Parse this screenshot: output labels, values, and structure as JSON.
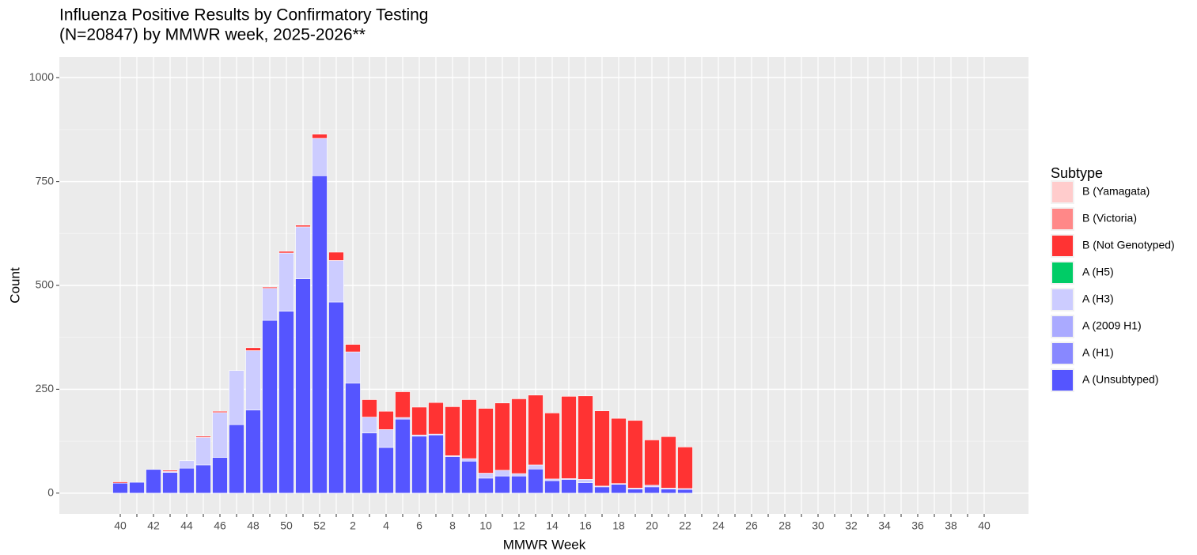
{
  "chart_data": {
    "type": "stacked_bar",
    "title": [
      "Influenza Positive Results by Confirmatory Testing",
      "(N=20847) by MMWR week, 2025-2026**"
    ],
    "x_label": "MMWR Week",
    "y_label": "Count",
    "legend_title": "Subtype",
    "categories": [
      "40",
      null,
      "42",
      null,
      "44",
      null,
      "46",
      null,
      "48",
      null,
      "50",
      null,
      "52",
      null,
      "2",
      null,
      "4",
      null,
      "6",
      null,
      "8",
      null,
      "10",
      null,
      "12",
      null,
      "14",
      null,
      "16",
      null,
      "18",
      null,
      "20",
      null,
      "22",
      null,
      "24",
      null,
      "26",
      null,
      "28",
      null,
      "30",
      null,
      "32",
      null,
      "34",
      null,
      "36",
      null,
      "38",
      null,
      "40"
    ],
    "series": [
      {
        "name": "A (Unsubtyped)",
        "color": "#5555ff",
        "values": [
          24,
          26,
          57,
          50,
          60,
          68,
          86,
          165,
          200,
          416,
          438,
          516,
          764,
          460,
          265,
          145,
          110,
          178,
          137,
          140,
          88,
          77,
          36,
          41,
          41,
          58,
          30,
          33,
          25,
          15,
          21,
          10,
          15,
          10,
          9,
          null,
          null,
          null,
          null,
          null,
          null,
          null,
          null,
          null,
          null,
          null,
          null,
          null,
          null,
          null,
          null,
          null,
          null
        ]
      },
      {
        "name": "A (H1)",
        "color": "#8888ff",
        "values": [
          0,
          0,
          0,
          0,
          0,
          0,
          0,
          0,
          0,
          0,
          0,
          0,
          0,
          0,
          0,
          0,
          0,
          0,
          0,
          0,
          0,
          0,
          0,
          0,
          0,
          0,
          0,
          0,
          0,
          0,
          0,
          0,
          0,
          0,
          0,
          null,
          null,
          null,
          null,
          null,
          null,
          null,
          null,
          null,
          null,
          null,
          null,
          null,
          null,
          null,
          null,
          null,
          null
        ]
      },
      {
        "name": "A (2009 H1)",
        "color": "#aaaaff",
        "values": [
          0,
          0,
          0,
          0,
          0,
          0,
          0,
          0,
          0,
          0,
          0,
          0,
          0,
          0,
          0,
          0,
          0,
          0,
          0,
          0,
          0,
          0,
          0,
          0,
          0,
          0,
          0,
          0,
          0,
          0,
          0,
          0,
          0,
          0,
          0,
          null,
          null,
          null,
          null,
          null,
          null,
          null,
          null,
          null,
          null,
          null,
          null,
          null,
          null,
          null,
          null,
          null,
          null
        ]
      },
      {
        "name": "A (H3)",
        "color": "#ccccff",
        "values": [
          0,
          0,
          0,
          2,
          18,
          66,
          108,
          130,
          143,
          77,
          140,
          125,
          90,
          100,
          75,
          38,
          43,
          4,
          3,
          2,
          2,
          6,
          12,
          14,
          6,
          10,
          4,
          2,
          8,
          2,
          2,
          2,
          4,
          2,
          2,
          null,
          null,
          null,
          null,
          null,
          null,
          null,
          null,
          null,
          null,
          null,
          null,
          null,
          null,
          null,
          null,
          null,
          null
        ]
      },
      {
        "name": "A (H5)",
        "color": "#00cc66",
        "values": [
          0,
          0,
          0,
          0,
          0,
          0,
          0,
          0,
          0,
          0,
          0,
          0,
          0,
          0,
          0,
          0,
          0,
          0,
          0,
          0,
          0,
          0,
          0,
          0,
          0,
          0,
          0,
          0,
          0,
          0,
          0,
          0,
          0,
          0,
          0,
          null,
          null,
          null,
          null,
          null,
          null,
          null,
          null,
          null,
          null,
          null,
          null,
          null,
          null,
          null,
          null,
          null,
          null
        ]
      },
      {
        "name": "B (Not Genotyped)",
        "color": "#ff3333",
        "values": [
          3,
          0,
          0,
          3,
          0,
          3,
          3,
          0,
          7,
          3,
          4,
          4,
          10,
          20,
          18,
          42,
          44,
          62,
          67,
          76,
          118,
          142,
          156,
          162,
          180,
          168,
          159,
          198,
          201,
          181,
          157,
          163,
          109,
          124,
          100,
          null,
          null,
          null,
          null,
          null,
          null,
          null,
          null,
          null,
          null,
          null,
          null,
          null,
          null,
          null,
          null,
          null,
          null
        ]
      },
      {
        "name": "B (Victoria)",
        "color": "#ff8888",
        "values": [
          0,
          0,
          0,
          0,
          0,
          0,
          0,
          0,
          0,
          0,
          0,
          0,
          0,
          0,
          0,
          0,
          0,
          0,
          0,
          0,
          0,
          0,
          0,
          0,
          0,
          0,
          0,
          0,
          0,
          0,
          0,
          0,
          0,
          0,
          0,
          null,
          null,
          null,
          null,
          null,
          null,
          null,
          null,
          null,
          null,
          null,
          null,
          null,
          null,
          null,
          null,
          null,
          null
        ]
      },
      {
        "name": "B (Yamagata)",
        "color": "#ffcccc",
        "values": [
          0,
          0,
          0,
          0,
          0,
          0,
          0,
          0,
          0,
          0,
          0,
          0,
          0,
          0,
          0,
          0,
          0,
          0,
          0,
          0,
          0,
          0,
          0,
          0,
          0,
          0,
          0,
          0,
          0,
          0,
          0,
          0,
          0,
          0,
          0,
          null,
          null,
          null,
          null,
          null,
          null,
          null,
          null,
          null,
          null,
          null,
          null,
          null,
          null,
          null,
          null,
          null,
          null
        ]
      }
    ],
    "ylim": [
      -50,
      1050
    ],
    "yticks": [
      0,
      250,
      500,
      750,
      1000
    ],
    "grid": true,
    "legend": "right"
  }
}
